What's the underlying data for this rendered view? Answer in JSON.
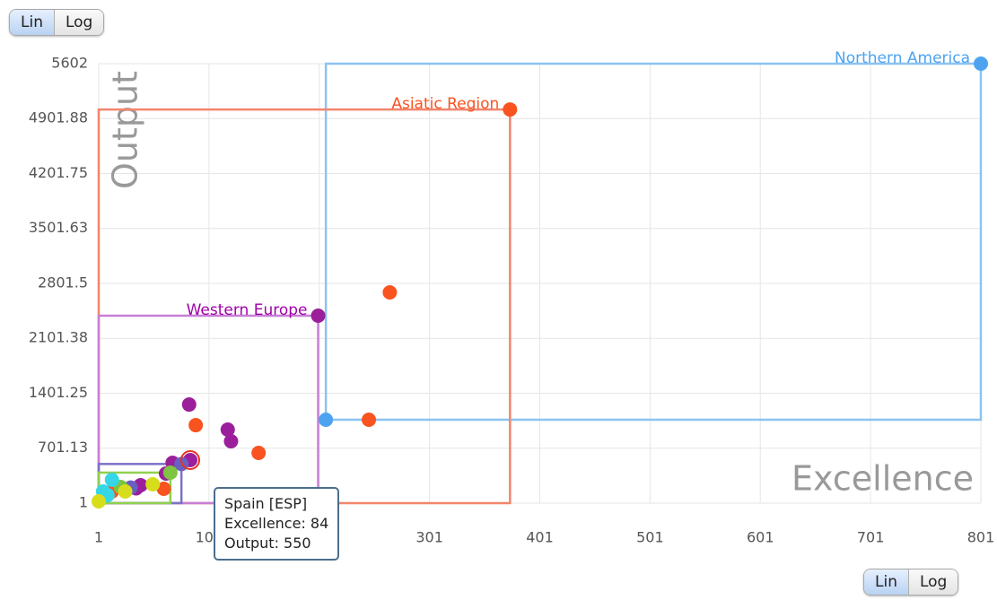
{
  "chart_data": {
    "type": "scatter",
    "xlabel": "Excellence",
    "ylabel": "Output",
    "xlim": [
      1,
      801
    ],
    "xticks": [
      1,
      101,
      201,
      301,
      401,
      501,
      601,
      701,
      801
    ],
    "ylim": [
      1,
      5602
    ],
    "yticks": [
      1,
      701.13,
      1401.25,
      2101.38,
      2801.5,
      3501.63,
      4201.75,
      4901.88,
      5602
    ],
    "grid": true,
    "log": false,
    "y_scale": {
      "options": [
        "Lin",
        "Log"
      ],
      "selected": "Lin"
    },
    "x_scale": {
      "options": [
        "Lin",
        "Log"
      ],
      "selected": "Lin"
    },
    "series": [
      {
        "name": "Northern America",
        "color": "#4da3f0",
        "box_color": "#8cc3f2",
        "x": [
          801,
          207
        ],
        "y": [
          5602,
          1064
        ],
        "box": {
          "x": [
            207,
            801
          ],
          "y": [
            1064,
            5602
          ]
        }
      },
      {
        "name": "Asiatic Region",
        "color": "#f9531f",
        "box_color": "#f2856d",
        "x": [
          374,
          265,
          246,
          146,
          89,
          60,
          13
        ],
        "y": [
          5018,
          2687,
          1064,
          641,
          995,
          184,
          150
        ],
        "box": {
          "x": [
            1,
            374
          ],
          "y": [
            1,
            5018
          ]
        }
      },
      {
        "name": "Western Europe",
        "color": "#9b1f9b",
        "box_color": "#c77fd6",
        "label_color": "#a000a8",
        "x": [
          200,
          83,
          118,
          121,
          84,
          62,
          68,
          39,
          35
        ],
        "y": [
          2390,
          1258,
          938,
          790,
          550,
          378,
          515,
          230,
          190
        ],
        "box": {
          "x": [
            1,
            200
          ],
          "y": [
            1,
            2390
          ]
        }
      },
      {
        "color": "#6a5fc0",
        "box_color": "#7a72c8",
        "x": [
          30,
          76
        ],
        "y": [
          200,
          500
        ],
        "box": {
          "x": [
            1,
            76
          ],
          "y": [
            1,
            500
          ]
        }
      },
      {
        "color": "#7dc443",
        "box_color": "#8fd14f",
        "x": [
          21,
          66
        ],
        "y": [
          207,
          390
        ],
        "box": {
          "x": [
            1,
            66
          ],
          "y": [
            1,
            390
          ]
        }
      },
      {
        "color": "#35d6e6",
        "x": [
          13,
          5,
          9
        ],
        "y": [
          298,
          150,
          104
        ]
      },
      {
        "color": "#d6de1c",
        "x": [
          1,
          25,
          50
        ],
        "y": [
          24,
          150,
          241
        ]
      }
    ],
    "tooltip": {
      "series": 2,
      "point": 4,
      "lines": [
        "Spain [ESP]",
        "Excellence: 84",
        "Output: 550"
      ]
    }
  }
}
